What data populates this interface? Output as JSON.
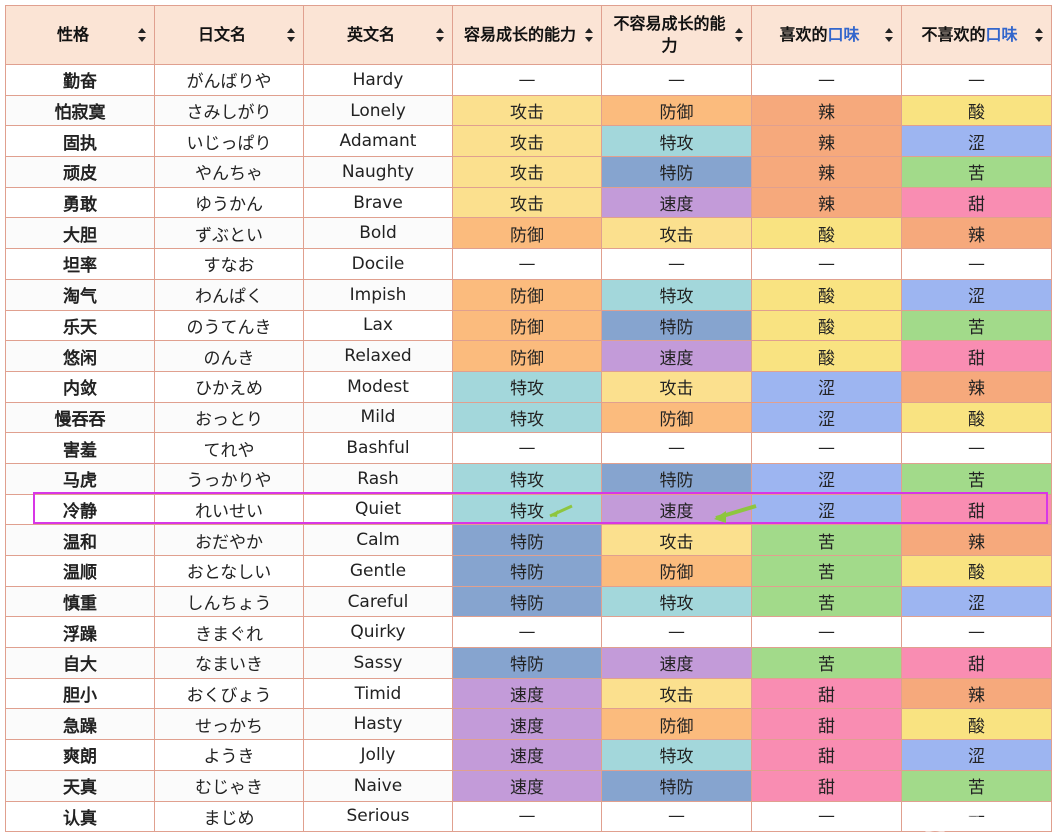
{
  "headers": [
    {
      "text": "性格"
    },
    {
      "text": "日文名"
    },
    {
      "text": "英文名"
    },
    {
      "text": "容易成长的能力"
    },
    {
      "text": "不容易成长的能力"
    },
    {
      "pre": "喜欢的",
      "hl": "口味"
    },
    {
      "pre": "不喜欢的",
      "hl": "口味"
    }
  ],
  "colors": {
    "攻击": "#fbe08e",
    "防御": "#fbbb7d",
    "特攻": "#a3d7db",
    "特防": "#86a4cf",
    "速度": "#c39bd9",
    "辣": "#f6a97c",
    "酸": "#f9e381",
    "涩": "#9db5f1",
    "苦": "#a2da8a",
    "甜": "#f98db2",
    "—": "#ffffff"
  },
  "rows": [
    [
      "勤奋",
      "がんばりや",
      "Hardy",
      "—",
      "—",
      "—",
      "—"
    ],
    [
      "怕寂寞",
      "さみしがり",
      "Lonely",
      "攻击",
      "防御",
      "辣",
      "酸"
    ],
    [
      "固执",
      "いじっぱり",
      "Adamant",
      "攻击",
      "特攻",
      "辣",
      "涩"
    ],
    [
      "顽皮",
      "やんちゃ",
      "Naughty",
      "攻击",
      "特防",
      "辣",
      "苦"
    ],
    [
      "勇敢",
      "ゆうかん",
      "Brave",
      "攻击",
      "速度",
      "辣",
      "甜"
    ],
    [
      "大胆",
      "ずぶとい",
      "Bold",
      "防御",
      "攻击",
      "酸",
      "辣"
    ],
    [
      "坦率",
      "すなお",
      "Docile",
      "—",
      "—",
      "—",
      "—"
    ],
    [
      "淘气",
      "わんぱく",
      "Impish",
      "防御",
      "特攻",
      "酸",
      "涩"
    ],
    [
      "乐天",
      "のうてんき",
      "Lax",
      "防御",
      "特防",
      "酸",
      "苦"
    ],
    [
      "悠闲",
      "のんき",
      "Relaxed",
      "防御",
      "速度",
      "酸",
      "甜"
    ],
    [
      "内敛",
      "ひかえめ",
      "Modest",
      "特攻",
      "攻击",
      "涩",
      "辣"
    ],
    [
      "慢吞吞",
      "おっとり",
      "Mild",
      "特攻",
      "防御",
      "涩",
      "酸"
    ],
    [
      "害羞",
      "てれや",
      "Bashful",
      "—",
      "—",
      "—",
      "—"
    ],
    [
      "马虎",
      "うっかりや",
      "Rash",
      "特攻",
      "特防",
      "涩",
      "苦"
    ],
    [
      "冷静",
      "れいせい",
      "Quiet",
      "特攻",
      "速度",
      "涩",
      "甜"
    ],
    [
      "温和",
      "おだやか",
      "Calm",
      "特防",
      "攻击",
      "苦",
      "辣"
    ],
    [
      "温顺",
      "おとなしい",
      "Gentle",
      "特防",
      "防御",
      "苦",
      "酸"
    ],
    [
      "慎重",
      "しんちょう",
      "Careful",
      "特防",
      "特攻",
      "苦",
      "涩"
    ],
    [
      "浮躁",
      "きまぐれ",
      "Quirky",
      "—",
      "—",
      "—",
      "—"
    ],
    [
      "自大",
      "なまいき",
      "Sassy",
      "特防",
      "速度",
      "苦",
      "甜"
    ],
    [
      "胆小",
      "おくびょう",
      "Timid",
      "速度",
      "攻击",
      "甜",
      "辣"
    ],
    [
      "急躁",
      "せっかち",
      "Hasty",
      "速度",
      "防御",
      "甜",
      "酸"
    ],
    [
      "爽朗",
      "ようき",
      "Jolly",
      "速度",
      "特攻",
      "甜",
      "涩"
    ],
    [
      "天真",
      "むじゃき",
      "Naive",
      "速度",
      "特防",
      "甜",
      "苦"
    ],
    [
      "认真",
      "まじめ",
      "Serious",
      "—",
      "—",
      "—",
      "—"
    ]
  ],
  "watermark": "电玩帮"
}
